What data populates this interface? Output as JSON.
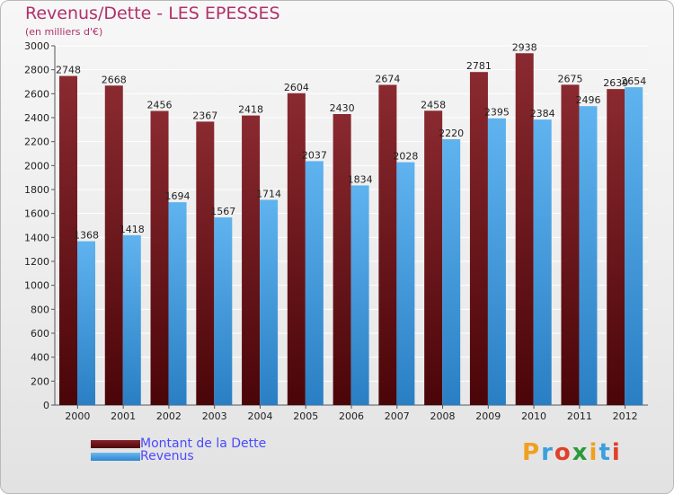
{
  "header": {
    "title": "Revenus/Dette - LES EPESSES",
    "subtitle": "(en milliers d'€)"
  },
  "legend": {
    "items": [
      {
        "label": "Montant de la Dette",
        "color": "#7a1a1f"
      },
      {
        "label": "Revenus",
        "color": "#4aa3e6"
      }
    ]
  },
  "brand": {
    "letters": [
      "P",
      "r",
      "o",
      "x",
      "i",
      "t",
      "i"
    ],
    "colors": [
      "#f0a020",
      "#3aa0e0",
      "#e0402a",
      "#2a9a3a",
      "#f0a020",
      "#3aa0e0",
      "#e0402a"
    ]
  },
  "chart_data": {
    "type": "bar",
    "categories": [
      "2000",
      "2001",
      "2002",
      "2003",
      "2004",
      "2005",
      "2006",
      "2007",
      "2008",
      "2009",
      "2010",
      "2011",
      "2012"
    ],
    "series": [
      {
        "name": "Montant de la Dette",
        "values": [
          2748,
          2668,
          2456,
          2367,
          2418,
          2604,
          2430,
          2674,
          2458,
          2781,
          2938,
          2675,
          2639
        ],
        "color": "#7a1a1f"
      },
      {
        "name": "Revenus",
        "values": [
          1368,
          1418,
          1694,
          1567,
          1714,
          2037,
          1834,
          2028,
          2220,
          2395,
          2384,
          2496,
          2654
        ],
        "color": "#4aa3e6"
      }
    ],
    "ylim": [
      0,
      3000
    ],
    "yticks": [
      0,
      200,
      400,
      600,
      800,
      1000,
      1200,
      1400,
      1600,
      1800,
      2000,
      2200,
      2400,
      2600,
      2800,
      3000
    ],
    "grid": true,
    "title": "Revenus/Dette - LES EPESSES",
    "ylabel": "(en milliers d'€)",
    "legend_position": "bottom-left"
  }
}
